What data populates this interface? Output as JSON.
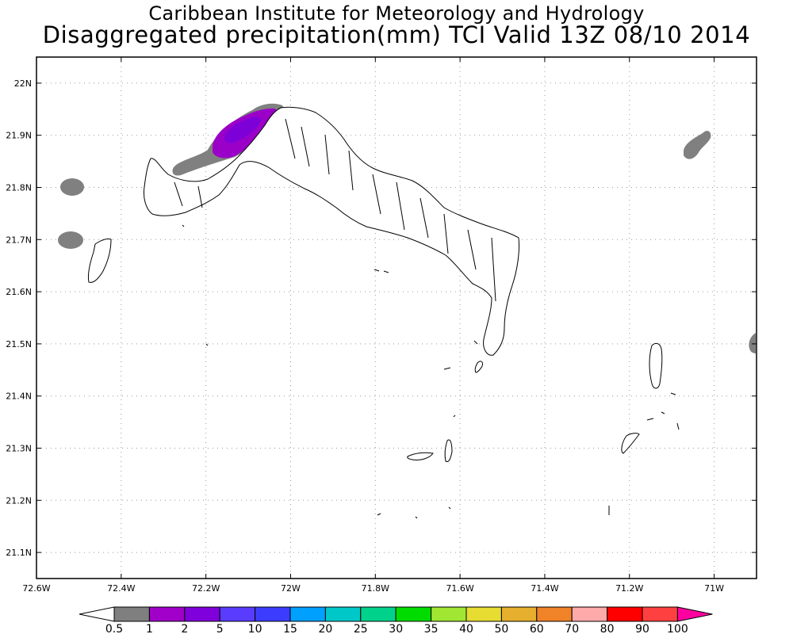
{
  "header": {
    "institute": "Caribbean Institute for Meteorology and Hydrology",
    "product": "Disaggregated precipitation(mm) TCI Valid 13Z 08/10 2014"
  },
  "map": {
    "lon_range": [
      -72.6,
      -70.9
    ],
    "lat_range": [
      21.05,
      22.05
    ],
    "lon_ticks": [
      {
        "v": -72.6,
        "label": "72.6W"
      },
      {
        "v": -72.4,
        "label": "72.4W"
      },
      {
        "v": -72.2,
        "label": "72.2W"
      },
      {
        "v": -72.0,
        "label": "72W"
      },
      {
        "v": -71.8,
        "label": "71.8W"
      },
      {
        "v": -71.6,
        "label": "71.6W"
      },
      {
        "v": -71.4,
        "label": "71.4W"
      },
      {
        "v": -71.2,
        "label": "71.2W"
      },
      {
        "v": -71.0,
        "label": "71W"
      }
    ],
    "lat_ticks": [
      {
        "v": 22.0,
        "label": "22N"
      },
      {
        "v": 21.9,
        "label": "21.9N"
      },
      {
        "v": 21.8,
        "label": "21.8N"
      },
      {
        "v": 21.7,
        "label": "21.7N"
      },
      {
        "v": 21.6,
        "label": "21.6N"
      },
      {
        "v": 21.5,
        "label": "21.5N"
      },
      {
        "v": 21.4,
        "label": "21.4N"
      },
      {
        "v": 21.3,
        "label": "21.3N"
      },
      {
        "v": 21.2,
        "label": "21.2N"
      },
      {
        "v": 21.1,
        "label": "21.1N"
      }
    ],
    "colors": {
      "light_rain": "#808080",
      "heavy_rain": "#9b00c8",
      "core_rain": "#7d00d8",
      "coast": "#000000",
      "grid": "#9a9a9a"
    }
  },
  "colorbar": {
    "labels": [
      "0.5",
      "1",
      "2",
      "5",
      "10",
      "15",
      "20",
      "25",
      "30",
      "35",
      "40",
      "50",
      "60",
      "70",
      "80",
      "90",
      "100"
    ],
    "colors": [
      "#7f7f7f",
      "#a000c8",
      "#8000dc",
      "#5a3cff",
      "#3c3cff",
      "#00a0ff",
      "#00c8c8",
      "#00d28c",
      "#00dc00",
      "#a0e632",
      "#e6dc32",
      "#e6af2d",
      "#f08228",
      "#ffaaaa",
      "#ff0000",
      "#ff4040"
    ],
    "over_color": "#ff00a0",
    "under_color": "#ffffff"
  }
}
